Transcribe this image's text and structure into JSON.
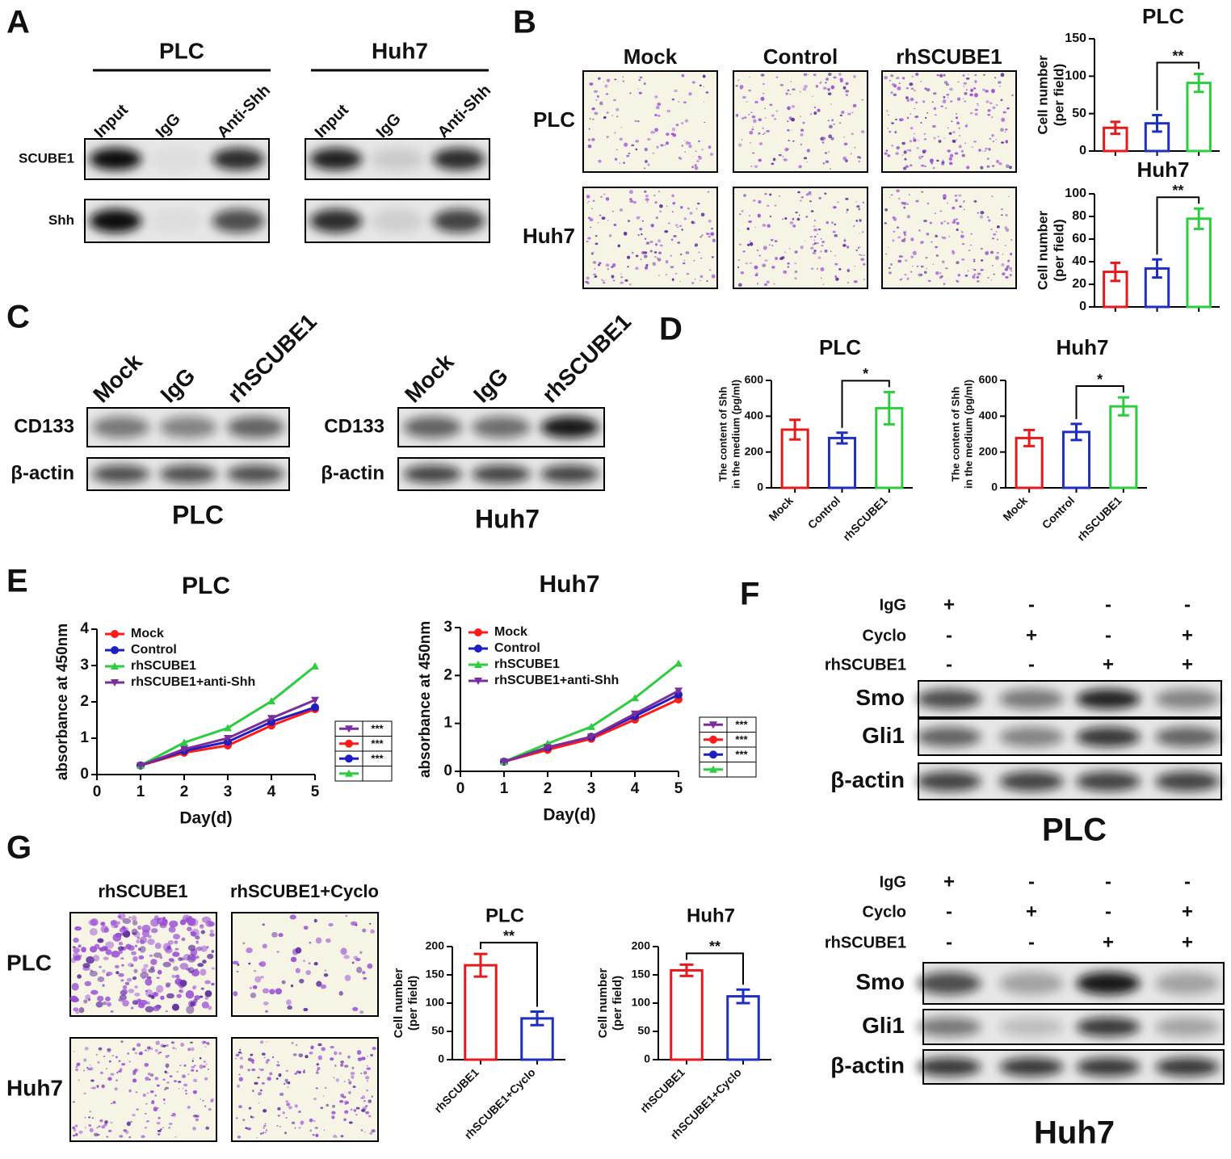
{
  "panel_labels": [
    "A",
    "B",
    "C",
    "D",
    "E",
    "F",
    "G"
  ],
  "panel_a": {
    "groups": [
      {
        "title": "PLC",
        "lanes": [
          "Input",
          "IgG",
          "Anti-Shh"
        ]
      },
      {
        "title": "Huh7",
        "lanes": [
          "Input",
          "IgG",
          "Anti-Shh"
        ]
      }
    ],
    "rows": [
      "SCUBE1",
      "Shh"
    ]
  },
  "panel_b": {
    "columns": [
      "Mock",
      "Control",
      "rhSCUBE1"
    ],
    "rows": [
      "PLC",
      "Huh7"
    ]
  },
  "panel_c": {
    "groups": [
      {
        "caption": "PLC",
        "lanes": [
          "Mock",
          "IgG",
          "rhSCUBE1"
        ],
        "rows": [
          "CD133",
          "β-actin"
        ]
      },
      {
        "caption": "Huh7",
        "lanes": [
          "Mock",
          "IgG",
          "rhSCUBE1"
        ],
        "rows": [
          "CD133",
          "β-actin"
        ]
      }
    ]
  },
  "panel_f": {
    "groups": [
      {
        "caption": "PLC",
        "conditions": [
          {
            "name": "IgG",
            "signs": [
              "+",
              "-",
              "-",
              "-"
            ]
          },
          {
            "name": "Cyclo",
            "signs": [
              "-",
              "+",
              "-",
              "+"
            ]
          },
          {
            "name": "rhSCUBE1",
            "signs": [
              "-",
              "-",
              "+",
              "+"
            ]
          }
        ],
        "rows": [
          "Smo",
          "Gli1",
          "β-actin"
        ]
      },
      {
        "caption": "Huh7",
        "conditions": [
          {
            "name": "IgG",
            "signs": [
              "+",
              "-",
              "-",
              "-"
            ]
          },
          {
            "name": "Cyclo",
            "signs": [
              "-",
              "+",
              "-",
              "+"
            ]
          },
          {
            "name": "rhSCUBE1",
            "signs": [
              "-",
              "-",
              "+",
              "+"
            ]
          }
        ],
        "rows": [
          "Smo",
          "Gli1",
          "β-actin"
        ]
      }
    ]
  },
  "panel_g": {
    "columns": [
      "rhSCUBE1",
      "rhSCUBE1+Cyclo"
    ],
    "rows": [
      "PLC",
      "Huh7"
    ]
  },
  "chart_data": [
    {
      "type": "bar",
      "title": "PLC",
      "ylabel": [
        "Cell number",
        "(per field)"
      ],
      "categories": [
        null,
        null,
        null
      ],
      "values": [
        31,
        37,
        91
      ],
      "errors": [
        8,
        11,
        12
      ],
      "colors": [
        "#e41a1c",
        "#1f2fbf",
        "#2ecc40"
      ],
      "ylim": [
        0,
        150
      ],
      "yticks": [
        0,
        50,
        100,
        150
      ],
      "significance": "**"
    },
    {
      "type": "bar",
      "title": "Huh7",
      "ylabel": [
        "Cell number",
        "(per field)"
      ],
      "categories": [
        null,
        null,
        null
      ],
      "values": [
        31,
        34,
        78
      ],
      "errors": [
        8,
        8,
        9
      ],
      "colors": [
        "#e41a1c",
        "#1f2fbf",
        "#2ecc40"
      ],
      "ylim": [
        0,
        100
      ],
      "yticks": [
        0,
        20,
        40,
        60,
        80,
        100
      ],
      "significance": "**"
    },
    {
      "type": "bar",
      "title": "PLC",
      "ylabel": [
        "The content of Shh",
        "in the medium (pg/ml)"
      ],
      "categories": [
        "Mock",
        "Control",
        "rhSCUBE1"
      ],
      "values": [
        325,
        278,
        445
      ],
      "errors": [
        55,
        30,
        90
      ],
      "colors": [
        "#e41a1c",
        "#1f2fbf",
        "#2ecc40"
      ],
      "ylim": [
        0,
        600
      ],
      "yticks": [
        0,
        200,
        400,
        600
      ],
      "significance": "*"
    },
    {
      "type": "bar",
      "title": "Huh7",
      "ylabel": [
        "The content of Shh",
        "in the medium (pg/ml)"
      ],
      "categories": [
        "Mock",
        "Control",
        "rhSCUBE1"
      ],
      "values": [
        278,
        312,
        455
      ],
      "errors": [
        45,
        45,
        50
      ],
      "colors": [
        "#e41a1c",
        "#1f2fbf",
        "#2ecc40"
      ],
      "ylim": [
        0,
        600
      ],
      "yticks": [
        0,
        200,
        400,
        600
      ],
      "significance": "*"
    },
    {
      "type": "line",
      "title": "PLC",
      "ylabel": [
        "absorbance at 450nm"
      ],
      "xlabel": "Day(d)",
      "x": [
        1,
        2,
        3,
        4,
        5
      ],
      "xlim": [
        0,
        5
      ],
      "xticks": [
        0,
        1,
        2,
        3,
        4,
        5
      ],
      "ylim": [
        0,
        4
      ],
      "yticks": [
        0,
        1,
        2,
        3,
        4
      ],
      "series": [
        {
          "name": "Mock",
          "color": "#ff1a1a",
          "marker": "circle",
          "values": [
            0.25,
            0.6,
            0.8,
            1.35,
            1.8
          ]
        },
        {
          "name": "Control",
          "color": "#1f1fbf",
          "marker": "circle",
          "values": [
            0.25,
            0.65,
            0.9,
            1.45,
            1.85
          ]
        },
        {
          "name": "rhSCUBE1",
          "color": "#2ecc40",
          "marker": "triangle-up",
          "values": [
            0.25,
            0.88,
            1.28,
            2.02,
            2.98
          ]
        },
        {
          "name": "rhSCUBE1+anti-Shh",
          "color": "#7b2d9c",
          "marker": "triangle-down",
          "values": [
            0.25,
            0.7,
            1.0,
            1.55,
            2.05
          ]
        }
      ],
      "significance_table": [
        {
          "color": "#7b2d9c",
          "marker": "triangle-down",
          "label": "***"
        },
        {
          "color": "#ff1a1a",
          "marker": "circle",
          "label": "***"
        },
        {
          "color": "#1f1fbf",
          "marker": "circle",
          "label": "***"
        },
        {
          "color": "#2ecc40",
          "marker": "triangle-up"
        }
      ]
    },
    {
      "type": "line",
      "title": "Huh7",
      "ylabel": [
        "absorbance at 450nm"
      ],
      "xlabel": "Day(d)",
      "x": [
        1,
        2,
        3,
        4,
        5
      ],
      "xlim": [
        0,
        5
      ],
      "xticks": [
        0,
        1,
        2,
        3,
        4,
        5
      ],
      "ylim": [
        0,
        3
      ],
      "yticks": [
        0,
        1,
        2,
        3
      ],
      "series": [
        {
          "name": "Mock",
          "color": "#ff1a1a",
          "marker": "circle",
          "values": [
            0.2,
            0.45,
            0.68,
            1.08,
            1.5
          ]
        },
        {
          "name": "Control",
          "color": "#1f1fbf",
          "marker": "circle",
          "values": [
            0.2,
            0.5,
            0.72,
            1.15,
            1.6
          ]
        },
        {
          "name": "rhSCUBE1",
          "color": "#2ecc40",
          "marker": "triangle-up",
          "values": [
            0.2,
            0.58,
            0.93,
            1.53,
            2.25
          ]
        },
        {
          "name": "rhSCUBE1+anti-Shh",
          "color": "#7b2d9c",
          "marker": "triangle-down",
          "values": [
            0.2,
            0.5,
            0.72,
            1.2,
            1.68
          ]
        }
      ],
      "significance_table": [
        {
          "color": "#7b2d9c",
          "marker": "triangle-down",
          "label": "***"
        },
        {
          "color": "#ff1a1a",
          "marker": "circle",
          "label": "***"
        },
        {
          "color": "#1f1fbf",
          "marker": "circle",
          "label": "***"
        },
        {
          "color": "#2ecc40",
          "marker": "triangle-up"
        }
      ]
    },
    {
      "type": "bar",
      "title": "PLC",
      "ylabel": [
        "Cell number",
        "(per field)"
      ],
      "categories": [
        "rhSCUBE1",
        "rhSCUBE1+Cyclo"
      ],
      "values": [
        167,
        73
      ],
      "errors": [
        20,
        12
      ],
      "colors": [
        "#e41a1c",
        "#1f2fbf"
      ],
      "ylim": [
        0,
        200
      ],
      "yticks": [
        0,
        50,
        100,
        150,
        200
      ],
      "significance": "**"
    },
    {
      "type": "bar",
      "title": "Huh7",
      "ylabel": [
        "Cell number",
        "(per field)"
      ],
      "categories": [
        "rhSCUBE1",
        "rhSCUBE1+Cyclo"
      ],
      "values": [
        158,
        112
      ],
      "errors": [
        10,
        12
      ],
      "colors": [
        "#e41a1c",
        "#1f2fbf"
      ],
      "ylim": [
        0,
        200
      ],
      "yticks": [
        0,
        50,
        100,
        150,
        200
      ],
      "significance": "**"
    }
  ]
}
